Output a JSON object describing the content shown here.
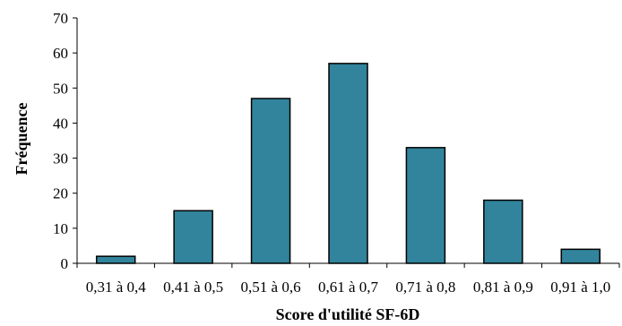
{
  "chart_data": {
    "type": "bar",
    "title": "",
    "xlabel": "Score d'utilité SF-6D",
    "ylabel": "Fréquence",
    "categories": [
      "0,31 à 0,4",
      "0,41 à 0,5",
      "0,51 à 0,6",
      "0,61 à 0,7",
      "0,71 à 0,8",
      "0,81 à 0,9",
      "0,91 à 1,0"
    ],
    "values": [
      2,
      15,
      47,
      57,
      33,
      18,
      4
    ],
    "ylim": [
      0,
      70
    ],
    "yticks": [
      "0",
      "10",
      "20",
      "30",
      "40",
      "50",
      "60",
      "70"
    ],
    "grid": false,
    "legend": "none",
    "colors": {
      "bar_fill": "#31849b",
      "bar_stroke": "#000000",
      "axis": "#000000"
    }
  }
}
